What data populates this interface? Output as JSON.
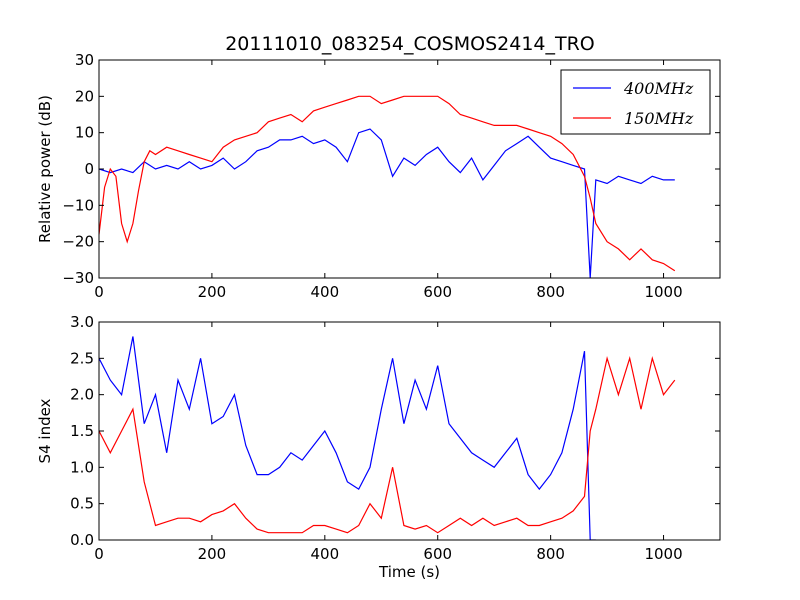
{
  "figure": {
    "title": "20111010_083254_COSMOS2414_TRO"
  },
  "chart_data": [
    {
      "type": "line",
      "title": "20111010_083254_COSMOS2414_TRO",
      "xlabel": "",
      "ylabel": "Relative power (dB)",
      "xlim": [
        0,
        1100
      ],
      "ylim": [
        -30,
        30
      ],
      "xticks": [
        0,
        200,
        400,
        600,
        800,
        1000
      ],
      "xtick_labels": [
        "0",
        "200",
        "400",
        "600",
        "800",
        "1000"
      ],
      "yticks": [
        -30,
        -20,
        -10,
        0,
        10,
        20,
        30
      ],
      "ytick_labels": [
        "−30",
        "−20",
        "−10",
        "0",
        "10",
        "20",
        "30"
      ],
      "grid": false,
      "legend": "top-right",
      "series": [
        {
          "name": "400MHz",
          "color": "#0000ff",
          "x": [
            0,
            20,
            40,
            60,
            80,
            100,
            120,
            140,
            160,
            180,
            200,
            220,
            240,
            260,
            280,
            300,
            320,
            340,
            360,
            380,
            400,
            420,
            440,
            460,
            480,
            500,
            520,
            540,
            560,
            580,
            600,
            620,
            640,
            660,
            680,
            700,
            720,
            740,
            760,
            780,
            800,
            820,
            840,
            860,
            865,
            870,
            880,
            900,
            920,
            940,
            960,
            980,
            1000,
            1020
          ],
          "y": [
            0,
            -1,
            0,
            -1,
            2,
            0,
            1,
            0,
            2,
            0,
            1,
            3,
            0,
            2,
            5,
            6,
            8,
            8,
            9,
            7,
            8,
            6,
            2,
            10,
            11,
            8,
            -2,
            3,
            1,
            4,
            6,
            2,
            -1,
            3,
            -3,
            1,
            5,
            7,
            9,
            6,
            3,
            2,
            1,
            0,
            -15,
            -30,
            -3,
            -4,
            -2,
            -3,
            -4,
            -2,
            -3,
            -3
          ]
        },
        {
          "name": "150MHz",
          "color": "#ff0000",
          "x": [
            0,
            10,
            20,
            30,
            40,
            50,
            60,
            70,
            80,
            90,
            100,
            120,
            140,
            160,
            180,
            200,
            220,
            240,
            260,
            280,
            300,
            320,
            340,
            360,
            380,
            400,
            420,
            440,
            460,
            480,
            500,
            520,
            540,
            560,
            580,
            600,
            620,
            640,
            660,
            680,
            700,
            720,
            740,
            760,
            780,
            800,
            820,
            840,
            860,
            870,
            880,
            900,
            920,
            940,
            960,
            980,
            1000,
            1020
          ],
          "y": [
            -18,
            -5,
            0,
            -2,
            -15,
            -20,
            -15,
            -6,
            2,
            5,
            4,
            6,
            5,
            4,
            3,
            2,
            6,
            8,
            9,
            10,
            13,
            14,
            15,
            13,
            16,
            17,
            18,
            19,
            20,
            20,
            18,
            19,
            20,
            20,
            20,
            20,
            18,
            15,
            14,
            13,
            12,
            12,
            12,
            11,
            10,
            9,
            7,
            4,
            -2,
            -8,
            -15,
            -20,
            -22,
            -25,
            -22,
            -25,
            -26,
            -28
          ]
        }
      ]
    },
    {
      "type": "line",
      "title": "",
      "xlabel": "Time (s)",
      "ylabel": "S4 index",
      "xlim": [
        0,
        1100
      ],
      "ylim": [
        0,
        3
      ],
      "xticks": [
        0,
        200,
        400,
        600,
        800,
        1000
      ],
      "xtick_labels": [
        "0",
        "200",
        "400",
        "600",
        "800",
        "1000"
      ],
      "yticks": [
        0,
        0.5,
        1,
        1.5,
        2,
        2.5,
        3
      ],
      "ytick_labels": [
        "0.0",
        "0.5",
        "1.0",
        "1.5",
        "2.0",
        "2.5",
        "3.0"
      ],
      "grid": false,
      "legend": "none",
      "series": [
        {
          "name": "400MHz",
          "color": "#0000ff",
          "x": [
            0,
            20,
            40,
            60,
            80,
            100,
            120,
            140,
            160,
            180,
            200,
            220,
            240,
            260,
            280,
            300,
            320,
            340,
            360,
            380,
            400,
            420,
            440,
            460,
            480,
            500,
            520,
            540,
            560,
            580,
            600,
            620,
            640,
            660,
            680,
            700,
            720,
            740,
            760,
            780,
            800,
            820,
            840,
            860,
            870,
            880
          ],
          "y": [
            2.5,
            2.2,
            2.0,
            2.8,
            1.6,
            2.0,
            1.2,
            2.2,
            1.8,
            2.5,
            1.6,
            1.7,
            2.0,
            1.3,
            0.9,
            0.9,
            1.0,
            1.2,
            1.1,
            1.3,
            1.5,
            1.2,
            0.8,
            0.7,
            1.0,
            1.8,
            2.5,
            1.6,
            2.2,
            1.8,
            2.4,
            1.6,
            1.4,
            1.2,
            1.1,
            1.0,
            1.2,
            1.4,
            0.9,
            0.7,
            0.9,
            1.2,
            1.8,
            2.6,
            0.0,
            0.0
          ]
        },
        {
          "name": "150MHz",
          "color": "#ff0000",
          "x": [
            0,
            20,
            40,
            60,
            80,
            100,
            120,
            140,
            160,
            180,
            200,
            220,
            240,
            260,
            280,
            300,
            320,
            340,
            360,
            380,
            400,
            420,
            440,
            460,
            480,
            500,
            520,
            540,
            560,
            580,
            600,
            620,
            640,
            660,
            680,
            700,
            720,
            740,
            760,
            780,
            800,
            820,
            840,
            860,
            870,
            880,
            900,
            920,
            940,
            960,
            980,
            1000,
            1020
          ],
          "y": [
            1.5,
            1.2,
            1.5,
            1.8,
            0.8,
            0.2,
            0.25,
            0.3,
            0.3,
            0.25,
            0.35,
            0.4,
            0.5,
            0.3,
            0.15,
            0.1,
            0.1,
            0.1,
            0.1,
            0.2,
            0.2,
            0.15,
            0.1,
            0.2,
            0.5,
            0.3,
            1.0,
            0.2,
            0.15,
            0.2,
            0.1,
            0.2,
            0.3,
            0.2,
            0.3,
            0.2,
            0.25,
            0.3,
            0.2,
            0.2,
            0.25,
            0.3,
            0.4,
            0.6,
            1.5,
            1.8,
            2.5,
            2.0,
            2.5,
            1.8,
            2.5,
            2.0,
            2.2
          ]
        }
      ]
    }
  ]
}
